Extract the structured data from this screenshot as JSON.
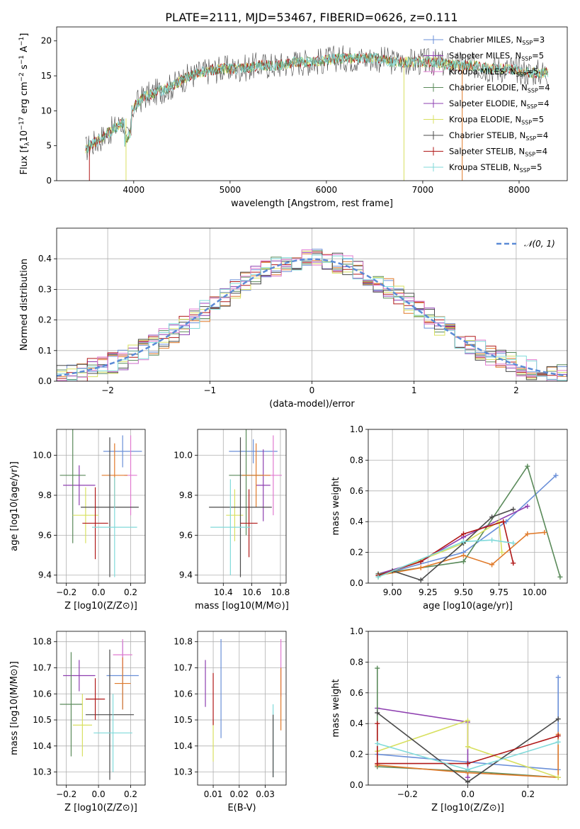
{
  "figure_title": "PLATE=2111, MJD=53467, FIBERID=0626, z=0.111",
  "colors": {
    "chabrier_miles": "#6a8fd8",
    "salpeter_miles": "#8e3fb0",
    "kroupa_miles": "#e07ad0",
    "chabrier_elodie": "#5a8a5a",
    "salpeter_elodie": "#8e3fb0",
    "kroupa_elodie": "#d8e060",
    "chabrier_stelib": "#4a4a4a",
    "salpeter_stelib": "#b01818",
    "kroupa_stelib": "#80dada",
    "orange": "#e07a2a",
    "gaussian": "#5b8ad6"
  },
  "chart_data": [
    {
      "id": "spectrum",
      "type": "line",
      "title": "PLATE=2111, MJD=53467, FIBERID=0626, z=0.111",
      "xlabel": "wavelength [Angstrom, rest frame]",
      "ylabel": "Flux [f_λ 10^-17 erg cm^-2 s^-1 A^-1]",
      "xlim": [
        3200,
        8500
      ],
      "ylim": [
        0,
        22
      ],
      "xticks": [
        4000,
        5000,
        6000,
        7000,
        8000
      ],
      "yticks": [
        0,
        5,
        10,
        15,
        20
      ],
      "grid": false,
      "legend_position": "top-right",
      "legend": [
        "Chabrier MILES, N_SSP=3",
        "Salpeter MILES, N_SSP=5",
        "Kroupa MILES, N_SSP=5",
        "Chabrier ELODIE, N_SSP=4",
        "Salpeter ELODIE, N_SSP=4",
        "Kroupa ELODIE, N_SSP=5",
        "Chabrier STELIB, N_SSP=4",
        "Salpeter STELIB, N_SSP=4",
        "Kroupa STELIB, N_SSP=5"
      ],
      "continuum": {
        "x": [
          3500,
          3600,
          3700,
          3800,
          3900,
          4000,
          4100,
          4200,
          4300,
          4400,
          4500,
          4700,
          4900,
          5100,
          5300,
          5500,
          5700,
          5900,
          6100,
          6300,
          6500,
          6700,
          6900,
          7100,
          7300,
          7500,
          7700,
          7900,
          8100,
          8300
        ],
        "y": [
          4.5,
          5.5,
          6.5,
          7.5,
          8.5,
          10.5,
          12.0,
          12.5,
          13.0,
          13.5,
          14.5,
          15.5,
          16.0,
          16.0,
          16.5,
          16.5,
          17.0,
          17.0,
          17.5,
          17.5,
          17.5,
          17.0,
          17.0,
          17.0,
          16.5,
          16.5,
          16.0,
          16.0,
          15.5,
          15.5
        ]
      }
    },
    {
      "id": "residuals",
      "type": "line",
      "xlabel": "(data-model)/error",
      "ylabel": "Normed distribution",
      "xlim": [
        -2.5,
        2.5
      ],
      "ylim": [
        0,
        0.5
      ],
      "xticks": [
        -2,
        -1,
        0,
        1,
        2
      ],
      "yticks": [
        0.0,
        0.1,
        0.2,
        0.3,
        0.4
      ],
      "grid": true,
      "legend_position": "top-right",
      "legend": [
        "N(0,1)"
      ],
      "gaussian": {
        "mean": 0,
        "sigma": 1
      }
    },
    {
      "id": "z-age",
      "type": "scatter",
      "xlabel": "Z [log10(Z/Z⊙)]",
      "ylabel": "age [log10(age/yr)]",
      "xlim": [
        -0.26,
        0.29
      ],
      "ylim": [
        9.36,
        10.13
      ],
      "xticks": [
        -0.2,
        0.0,
        0.2
      ],
      "yticks": [
        9.4,
        9.6,
        9.8,
        10.0
      ],
      "points": [
        {
          "x": 0.15,
          "y": 10.02,
          "xerr": 0.12,
          "yerr": 0.08,
          "color": "chabrier_miles"
        },
        {
          "x": -0.12,
          "y": 9.85,
          "xerr": 0.1,
          "yerr": 0.1,
          "color": "salpeter_miles"
        },
        {
          "x": 0.2,
          "y": 9.9,
          "xerr": 0.04,
          "yerr": 0.2,
          "color": "kroupa_miles"
        },
        {
          "x": -0.16,
          "y": 9.9,
          "xerr": 0.08,
          "yerr": 0.34,
          "color": "chabrier_elodie"
        },
        {
          "x": 0.1,
          "y": 9.9,
          "xerr": 0.08,
          "yerr": 0.16,
          "color": "orange"
        },
        {
          "x": -0.08,
          "y": 9.7,
          "xerr": 0.08,
          "yerr": 0.14,
          "color": "kroupa_elodie"
        },
        {
          "x": 0.07,
          "y": 9.74,
          "xerr": 0.18,
          "yerr": 0.35,
          "color": "chabrier_stelib"
        },
        {
          "x": -0.02,
          "y": 9.66,
          "xerr": 0.08,
          "yerr": 0.18,
          "color": "salpeter_stelib"
        },
        {
          "x": 0.1,
          "y": 9.64,
          "xerr": 0.14,
          "yerr": 0.25,
          "color": "kroupa_stelib"
        }
      ]
    },
    {
      "id": "mass-age",
      "type": "scatter",
      "xlabel": "mass [log10(M/M⊙)]",
      "ylabel": "",
      "xlim": [
        10.22,
        10.84
      ],
      "ylim": [
        9.36,
        10.13
      ],
      "xticks": [
        10.4,
        10.6,
        10.8
      ],
      "yticks": [
        9.4,
        9.6,
        9.8,
        10.0
      ],
      "points": [
        {
          "x": 10.61,
          "y": 10.02,
          "xerr": 0.17,
          "yerr": 0.06,
          "color": "chabrier_miles"
        },
        {
          "x": 10.68,
          "y": 9.85,
          "xerr": 0.05,
          "yerr": 0.18,
          "color": "salpeter_miles"
        },
        {
          "x": 10.75,
          "y": 9.9,
          "xerr": 0.06,
          "yerr": 0.2,
          "color": "kroupa_miles"
        },
        {
          "x": 10.56,
          "y": 9.9,
          "xerr": 0.12,
          "yerr": 0.3,
          "color": "chabrier_elodie"
        },
        {
          "x": 10.63,
          "y": 9.9,
          "xerr": 0.1,
          "yerr": 0.16,
          "color": "orange"
        },
        {
          "x": 10.48,
          "y": 9.7,
          "xerr": 0.06,
          "yerr": 0.13,
          "color": "kroupa_elodie"
        },
        {
          "x": 10.52,
          "y": 9.74,
          "xerr": 0.22,
          "yerr": 0.35,
          "color": "chabrier_stelib"
        },
        {
          "x": 10.58,
          "y": 9.66,
          "xerr": 0.06,
          "yerr": 0.17,
          "color": "salpeter_stelib"
        },
        {
          "x": 10.45,
          "y": 9.64,
          "xerr": 0.14,
          "yerr": 0.24,
          "color": "kroupa_stelib"
        }
      ]
    },
    {
      "id": "age-weight",
      "type": "line",
      "xlabel": "age [log10(age/yr)]",
      "ylabel": "mass weight",
      "xlim": [
        8.83,
        10.23
      ],
      "ylim": [
        0,
        1
      ],
      "xticks": [
        9.0,
        9.25,
        9.5,
        9.75,
        10.0
      ],
      "ytick_labels": [
        "0.0",
        "0.2",
        "0.4",
        "0.6",
        "0.8",
        "1.0"
      ],
      "grid": true,
      "series": [
        {
          "color": "chabrier_miles",
          "x": [
            8.9,
            9.5,
            9.8,
            10.15
          ],
          "y": [
            0.05,
            0.2,
            0.4,
            0.7
          ]
        },
        {
          "color": "salpeter_miles",
          "x": [
            8.9,
            9.2,
            9.5,
            9.95
          ],
          "y": [
            0.06,
            0.14,
            0.3,
            0.5
          ]
        },
        {
          "color": "chabrier_elodie",
          "x": [
            8.9,
            9.5,
            9.95,
            10.18
          ],
          "y": [
            0.06,
            0.14,
            0.76,
            0.04
          ]
        },
        {
          "color": "orange",
          "x": [
            8.9,
            9.2,
            9.5,
            9.7,
            9.95,
            10.07
          ],
          "y": [
            0.05,
            0.1,
            0.18,
            0.12,
            0.32,
            0.33
          ]
        },
        {
          "color": "kroupa_elodie",
          "x": [
            8.9,
            9.5,
            9.75,
            9.77
          ],
          "y": [
            0.04,
            0.26,
            0.4,
            0.2
          ]
        },
        {
          "color": "chabrier_stelib",
          "x": [
            8.9,
            9.0,
            9.2,
            9.5,
            9.7,
            9.85
          ],
          "y": [
            0.05,
            0.08,
            0.02,
            0.26,
            0.43,
            0.48
          ]
        },
        {
          "color": "salpeter_stelib",
          "x": [
            8.9,
            9.2,
            9.5,
            9.78,
            9.85
          ],
          "y": [
            0.05,
            0.14,
            0.32,
            0.4,
            0.13
          ]
        },
        {
          "color": "kroupa_stelib",
          "x": [
            8.9,
            9.5,
            9.7,
            9.85
          ],
          "y": [
            0.04,
            0.27,
            0.28,
            0.26
          ]
        }
      ]
    },
    {
      "id": "z-mass",
      "type": "scatter",
      "xlabel": "Z [log10(Z/Z⊙)]",
      "ylabel": "mass [log10(M/M⊙)]",
      "xlim": [
        -0.26,
        0.29
      ],
      "ylim": [
        10.25,
        10.84
      ],
      "xticks": [
        -0.2,
        0.0,
        0.2
      ],
      "yticks": [
        10.3,
        10.4,
        10.5,
        10.6,
        10.7,
        10.8
      ],
      "points": [
        {
          "x": 0.15,
          "y": 10.67,
          "xerr": 0.1,
          "yerr": 0.13,
          "color": "chabrier_miles"
        },
        {
          "x": -0.12,
          "y": 10.67,
          "xerr": 0.1,
          "yerr": 0.06,
          "color": "salpeter_miles"
        },
        {
          "x": 0.15,
          "y": 10.75,
          "xerr": 0.06,
          "yerr": 0.06,
          "color": "kroupa_miles"
        },
        {
          "x": -0.17,
          "y": 10.56,
          "xerr": 0.07,
          "yerr": 0.2,
          "color": "chabrier_elodie"
        },
        {
          "x": 0.15,
          "y": 10.64,
          "xerr": 0.05,
          "yerr": 0.1,
          "color": "orange"
        },
        {
          "x": -0.1,
          "y": 10.48,
          "xerr": 0.06,
          "yerr": 0.12,
          "color": "kroupa_elodie"
        },
        {
          "x": 0.07,
          "y": 10.52,
          "xerr": 0.15,
          "yerr": 0.25,
          "color": "chabrier_stelib"
        },
        {
          "x": -0.02,
          "y": 10.58,
          "xerr": 0.06,
          "yerr": 0.08,
          "color": "salpeter_stelib"
        },
        {
          "x": 0.09,
          "y": 10.45,
          "xerr": 0.12,
          "yerr": 0.15,
          "color": "kroupa_stelib"
        }
      ]
    },
    {
      "id": "ebv-mass",
      "type": "scatter",
      "xlabel": "E(B-V)",
      "ylabel": "",
      "xlim": [
        0.004,
        0.038
      ],
      "ylim": [
        10.25,
        10.84
      ],
      "xticks": [
        0.01,
        0.02,
        0.03
      ],
      "yticks": [
        10.3,
        10.4,
        10.5,
        10.6,
        10.7,
        10.8
      ],
      "points": [
        {
          "x": 0.013,
          "y": 10.62,
          "yerr": 0.19,
          "color": "chabrier_miles"
        },
        {
          "x": 0.007,
          "y": 10.64,
          "yerr": 0.09,
          "color": "salpeter_miles"
        },
        {
          "x": 0.036,
          "y": 10.7,
          "yerr": 0.11,
          "color": "kroupa_miles"
        },
        {
          "x": 0.036,
          "y": 10.58,
          "yerr": 0.12,
          "color": "orange"
        },
        {
          "x": 0.01,
          "y": 10.42,
          "yerr": 0.08,
          "color": "kroupa_elodie"
        },
        {
          "x": 0.01,
          "y": 10.58,
          "yerr": 0.1,
          "color": "salpeter_stelib"
        },
        {
          "x": 0.033,
          "y": 10.42,
          "yerr": 0.14,
          "color": "kroupa_stelib"
        },
        {
          "x": 0.033,
          "y": 10.4,
          "yerr": 0.12,
          "color": "chabrier_stelib"
        }
      ]
    },
    {
      "id": "z-weight",
      "type": "line",
      "xlabel": "Z [log10(Z/Z⊙)]",
      "ylabel": "mass weight",
      "xlim": [
        -0.33,
        0.33
      ],
      "ylim": [
        0,
        1
      ],
      "xticks": [
        -0.2,
        0.0,
        0.2
      ],
      "ytick_labels": [
        "0.0",
        "0.2",
        "0.4",
        "0.6",
        "0.8",
        "1.0"
      ],
      "grid": true,
      "series": [
        {
          "color": "chabrier_miles",
          "x": [
            -0.3,
            0.0,
            0.3,
            0.3
          ],
          "y": [
            0.2,
            0.15,
            0.1,
            0.7
          ]
        },
        {
          "color": "salpeter_miles",
          "x": [
            -0.3,
            0.0,
            0.0
          ],
          "y": [
            0.5,
            0.41,
            0.05
          ]
        },
        {
          "color": "chabrier_elodie",
          "x": [
            -0.3,
            -0.3,
            0.0,
            0.3
          ],
          "y": [
            0.76,
            0.12,
            0.09,
            0.05
          ]
        },
        {
          "color": "orange",
          "x": [
            -0.3,
            0.0,
            0.3,
            0.3
          ],
          "y": [
            0.13,
            0.08,
            0.05,
            0.33
          ]
        },
        {
          "color": "kroupa_elodie",
          "x": [
            -0.3,
            0.0,
            0.0,
            0.3
          ],
          "y": [
            0.22,
            0.42,
            0.25,
            0.05
          ]
        },
        {
          "color": "chabrier_stelib",
          "x": [
            -0.3,
            0.0,
            0.3
          ],
          "y": [
            0.47,
            0.02,
            0.43
          ]
        },
        {
          "color": "salpeter_stelib",
          "x": [
            -0.3,
            -0.3,
            0.0,
            0.3
          ],
          "y": [
            0.4,
            0.14,
            0.14,
            0.32
          ]
        },
        {
          "color": "kroupa_stelib",
          "x": [
            -0.3,
            0.0,
            0.3
          ],
          "y": [
            0.27,
            0.1,
            0.28
          ]
        }
      ]
    }
  ]
}
